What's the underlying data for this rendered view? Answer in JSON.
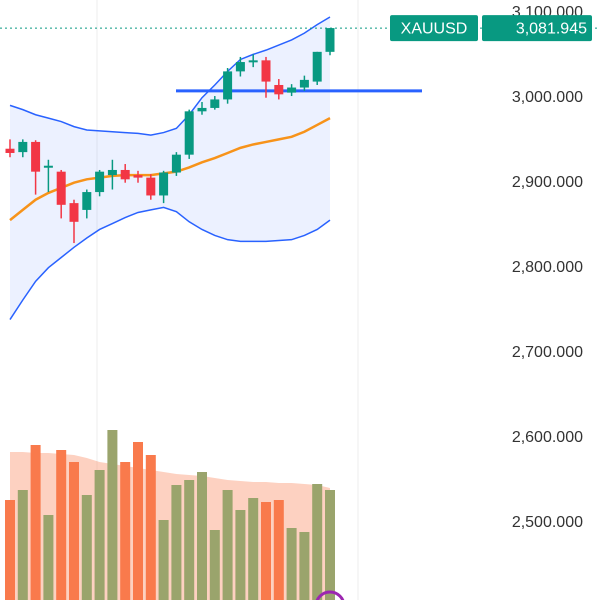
{
  "chart_data": {
    "type": "candlestick",
    "symbol": "XAUUSD",
    "last_price": {
      "value": 3081.945,
      "label": "3,081.945"
    },
    "ylim": [
      2409,
      3115
    ],
    "yticks": [
      {
        "value": 2500,
        "label": "2,500.000"
      },
      {
        "value": 2600,
        "label": "2,600.000"
      },
      {
        "value": 2700,
        "label": "2,700.000"
      },
      {
        "value": 2800,
        "label": "2,800.000"
      },
      {
        "value": 2900,
        "label": "2,900.000"
      },
      {
        "value": 3000,
        "label": "3,000.000"
      },
      {
        "value": 3100,
        "label": "3,100.000"
      }
    ],
    "up_color": "#089981",
    "down_color": "#f23645",
    "open": [
      2940,
      2936,
      2948,
      2918,
      2913,
      2876,
      2868,
      2889,
      2909,
      2915,
      2909,
      2906,
      2885,
      2912,
      2933,
      2984,
      2988,
      2998,
      3031,
      3042,
      3044,
      3015,
      3006,
      3012,
      3019,
      3054
    ],
    "high": [
      2951,
      2951,
      2950,
      2927,
      2915,
      2880,
      2892,
      2915,
      2927,
      2922,
      2914,
      2910,
      2914,
      2936,
      2986,
      2995,
      3002,
      3035,
      3048,
      3051,
      3048,
      3022,
      3016,
      3026,
      3054,
      3081.945
    ],
    "low": [
      2930,
      2930,
      2886,
      2889,
      2858,
      2829,
      2858,
      2884,
      2892,
      2900,
      2900,
      2880,
      2876,
      2908,
      2928,
      2980,
      2986,
      2993,
      3025,
      3036,
      3000,
      2998,
      3002,
      3008,
      3015,
      3050
    ],
    "close": [
      2935,
      2948,
      2913,
      2920,
      2874,
      2854,
      2889,
      2913,
      2915,
      2904,
      2906,
      2885,
      2912,
      2933,
      2984,
      2988,
      2998,
      3031,
      3042,
      3044,
      3019,
      3004,
      3012,
      3021,
      3054,
      3081.945
    ],
    "bands": {
      "color": "#2962ff",
      "fill": "rgba(41,98,255,0.09)",
      "upper": [
        2991,
        2986,
        2980,
        2976,
        2972,
        2966,
        2962,
        2961,
        2960,
        2959,
        2958,
        2956,
        2959,
        2964,
        2980,
        3000,
        3015,
        3031,
        3045,
        3051,
        3056,
        3062,
        3068,
        3076,
        3086,
        3095
      ],
      "lower": [
        2739,
        2762,
        2784,
        2800,
        2812,
        2824,
        2835,
        2845,
        2852,
        2859,
        2865,
        2868,
        2871,
        2866,
        2854,
        2845,
        2838,
        2833,
        2831,
        2831,
        2831,
        2832,
        2833,
        2838,
        2845,
        2856
      ]
    },
    "moving_average": {
      "color": "#f7931a",
      "values": [
        2856,
        2868,
        2880,
        2888,
        2894,
        2900,
        2904,
        2906,
        2908,
        2909,
        2909,
        2909,
        2911,
        2913,
        2918,
        2924,
        2929,
        2935,
        2941,
        2945,
        2948,
        2951,
        2954,
        2960,
        2968,
        2976
      ]
    },
    "level": {
      "value": 3008,
      "color": "#2962ff"
    },
    "volume": {
      "up_color": "#9aa46c",
      "down_color": "#f97a4c",
      "ma_color": "rgba(249,122,76,0.35)",
      "values": [
        100,
        110,
        155,
        85,
        150,
        138,
        105,
        130,
        170,
        138,
        158,
        145,
        80,
        115,
        120,
        128,
        70,
        110,
        90,
        102,
        98,
        100,
        72,
        68,
        116,
        110
      ],
      "ma": [
        148,
        148,
        147,
        147,
        146,
        145,
        142,
        138,
        136,
        134,
        132,
        130,
        128,
        126,
        125,
        124,
        122,
        120,
        119,
        118,
        118,
        117,
        117,
        116,
        115,
        112
      ]
    }
  }
}
